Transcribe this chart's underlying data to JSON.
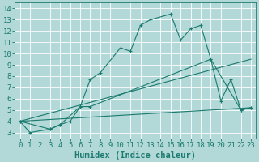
{
  "xlabel": "Humidex (Indice chaleur)",
  "xlim": [
    -0.5,
    23.5
  ],
  "ylim": [
    2.5,
    14.5
  ],
  "xticks": [
    0,
    1,
    2,
    3,
    4,
    5,
    6,
    7,
    8,
    9,
    10,
    11,
    12,
    13,
    14,
    15,
    16,
    17,
    18,
    19,
    20,
    21,
    22,
    23
  ],
  "yticks": [
    3,
    4,
    5,
    6,
    7,
    8,
    9,
    10,
    11,
    12,
    13,
    14
  ],
  "background_color": "#b2d8d8",
  "grid_color": "#ffffff",
  "line_color": "#1a7a6e",
  "line1_x": [
    0,
    1,
    3,
    4,
    6,
    7,
    8,
    10,
    11,
    12,
    13,
    15,
    16,
    17,
    18,
    19,
    22,
    23
  ],
  "line1_y": [
    4.0,
    3.0,
    3.3,
    3.7,
    5.3,
    7.7,
    8.3,
    10.5,
    10.2,
    12.5,
    13.0,
    13.5,
    11.2,
    12.2,
    12.5,
    9.5,
    5.0,
    5.2
  ],
  "line2_x": [
    0,
    3,
    4,
    5,
    6,
    7,
    19,
    20,
    21,
    22,
    23
  ],
  "line2_y": [
    4.0,
    3.3,
    3.7,
    4.0,
    5.3,
    5.3,
    9.5,
    5.8,
    7.7,
    5.0,
    5.2
  ],
  "line3_x": [
    0,
    23
  ],
  "line3_y": [
    4.0,
    9.5
  ],
  "line4_x": [
    0,
    23
  ],
  "line4_y": [
    4.0,
    5.2
  ],
  "font_family": "monospace",
  "tick_fontsize": 6.5,
  "label_fontsize": 7.5
}
